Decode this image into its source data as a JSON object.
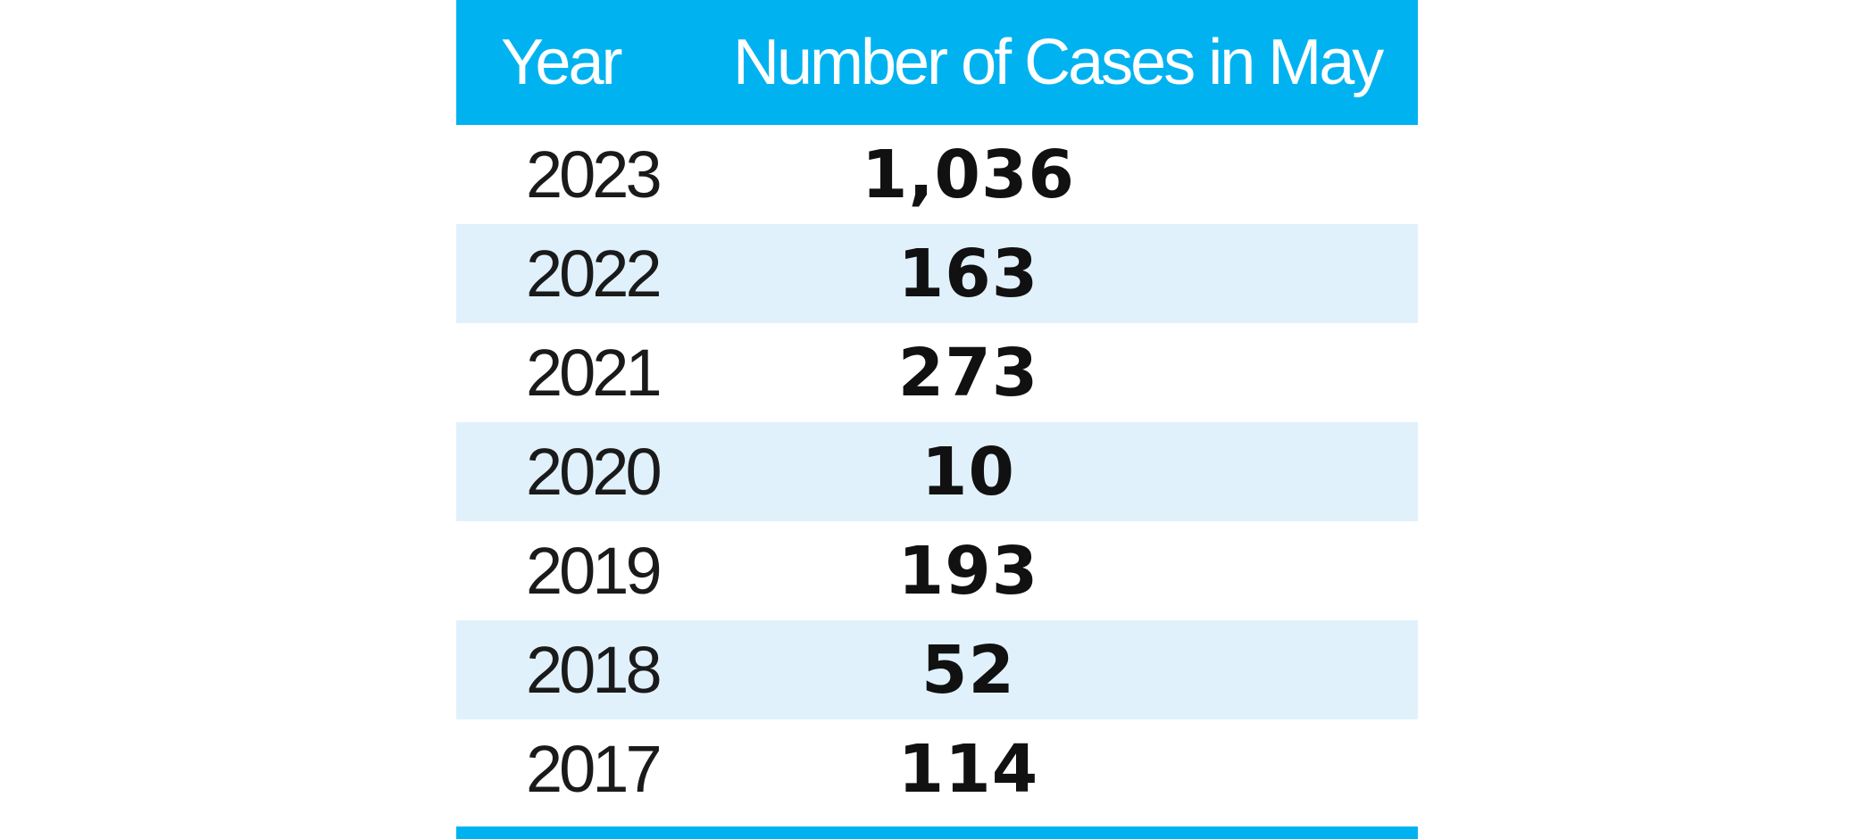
{
  "chart_data": {
    "type": "table",
    "columns": [
      "Year",
      "Number of Cases in May"
    ],
    "rows": [
      {
        "year": "2023",
        "cases": "1,036"
      },
      {
        "year": "2022",
        "cases": "163"
      },
      {
        "year": "2021",
        "cases": "273"
      },
      {
        "year": "2020",
        "cases": "10"
      },
      {
        "year": "2019",
        "cases": "193"
      },
      {
        "year": "2018",
        "cases": "52"
      },
      {
        "year": "2017",
        "cases": "114"
      }
    ]
  },
  "colors": {
    "header_bg": "#00b3f0",
    "alt_row_bg": "#e0f1fc",
    "header_text": "#ffffff",
    "body_text": "#111111"
  }
}
